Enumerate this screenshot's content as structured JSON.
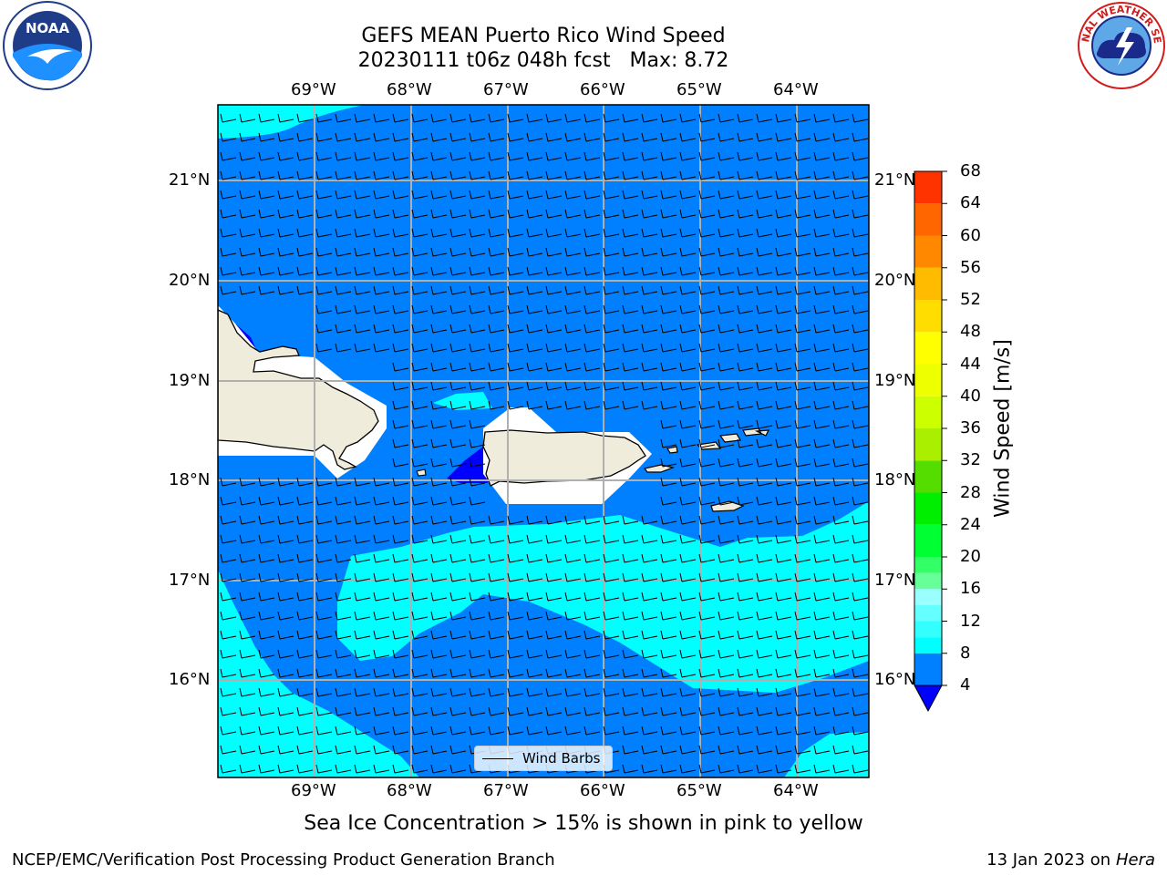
{
  "header": {
    "title_line1": "GEFS MEAN Puerto Rico Wind Speed",
    "title_line2": "20230111 t06z 048h fcst   Max: 8.72"
  },
  "logos": {
    "noaa_text": "NOAA",
    "nws_text": "NATIONAL WEATHER SERVICE"
  },
  "map": {
    "lon_labels": [
      "69°W",
      "68°W",
      "67°W",
      "66°W",
      "65°W",
      "64°W"
    ],
    "lat_labels": [
      "21°N",
      "20°N",
      "19°N",
      "18°N",
      "17°N",
      "16°N"
    ],
    "legend_label": "Wind Barbs",
    "colors": {
      "ocean_low": "#0080ff",
      "ocean_high": "#00ffff",
      "very_low": "#0000ff",
      "land": "#efecdc",
      "grid": "#b0b0b0"
    }
  },
  "colorbar": {
    "title": "Wind Speed [m/s]",
    "ticks": [
      "68",
      "64",
      "60",
      "56",
      "52",
      "48",
      "44",
      "40",
      "36",
      "32",
      "28",
      "24",
      "20",
      "16",
      "12",
      "8",
      "4"
    ],
    "levels": [
      4,
      8,
      10,
      12,
      14,
      16,
      18,
      20,
      24,
      28,
      32,
      36,
      40,
      44,
      48,
      52,
      56,
      60,
      64,
      68
    ],
    "colors": [
      "#0080ff",
      "#00ffff",
      "#33ffff",
      "#66ffff",
      "#99ffff",
      "#66ff99",
      "#33ff66",
      "#00ff33",
      "#00ee00",
      "#55dd00",
      "#aaee00",
      "#ccff00",
      "#eeff00",
      "#ffff00",
      "#ffdd00",
      "#ffbb00",
      "#ff8800",
      "#ff6600",
      "#ff3300",
      "#ff0000"
    ],
    "extend_color": "#0000ff"
  },
  "footer": {
    "caption": "Sea Ice Concentration > 15% is shown in pink to yellow",
    "credit_left": "NCEP/EMC/Verification Post Processing Product Generation Branch",
    "credit_right_date": "13 Jan 2023 on ",
    "credit_right_host": "Hera"
  }
}
